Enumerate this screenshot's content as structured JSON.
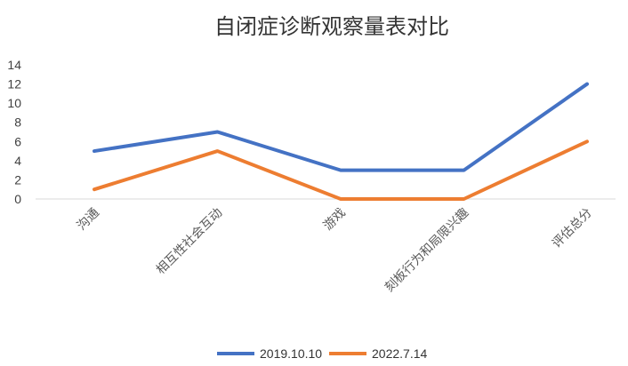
{
  "chart_data": {
    "type": "line",
    "title": "自闭症诊断观察量表对比",
    "categories": [
      "沟通",
      "相互性社会互动",
      "游戏",
      "刻板行为和局限兴趣",
      "评估总分"
    ],
    "series": [
      {
        "name": "2019.10.10",
        "values": [
          5,
          7,
          3,
          3,
          12
        ],
        "color": "#4472C4"
      },
      {
        "name": "2022.7.14",
        "values": [
          1,
          5,
          0,
          0,
          6
        ],
        "color": "#ED7D31"
      }
    ],
    "yticks": [
      0,
      2,
      4,
      6,
      8,
      10,
      12,
      14
    ],
    "ylim": [
      0,
      14
    ],
    "grid": false,
    "legend": "bottom"
  }
}
